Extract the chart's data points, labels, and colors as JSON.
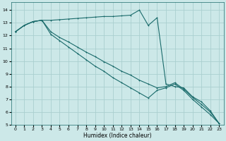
{
  "xlabel": "Humidex (Indice chaleur)",
  "background_color": "#cce8e8",
  "grid_color": "#aacfcf",
  "line_color": "#1a6b6b",
  "xlim": [
    -0.5,
    23.5
  ],
  "ylim": [
    5,
    14.6
  ],
  "yticks": [
    5,
    6,
    7,
    8,
    9,
    10,
    11,
    12,
    13,
    14
  ],
  "xticks": [
    0,
    1,
    2,
    3,
    4,
    5,
    6,
    7,
    8,
    9,
    10,
    11,
    12,
    13,
    14,
    15,
    16,
    17,
    18,
    19,
    20,
    21,
    22,
    23
  ],
  "series1_x": [
    0,
    1,
    2,
    3,
    4,
    5,
    6,
    7,
    8,
    9,
    10,
    11,
    12,
    13,
    14,
    15,
    16,
    17,
    18,
    19,
    20,
    21,
    22,
    23
  ],
  "series1_y": [
    12.3,
    12.8,
    13.1,
    13.2,
    13.2,
    13.25,
    13.3,
    13.35,
    13.4,
    13.45,
    13.5,
    13.5,
    13.55,
    13.6,
    14.0,
    12.8,
    13.4,
    8.2,
    8.0,
    7.9,
    7.2,
    6.8,
    6.1,
    5.1
  ],
  "series2_x": [
    0,
    1,
    2,
    3,
    4,
    5,
    6,
    7,
    8,
    9,
    10,
    11,
    12,
    13,
    14,
    15,
    16,
    17,
    18,
    19,
    20,
    21,
    22,
    23
  ],
  "series2_y": [
    12.3,
    12.8,
    13.1,
    13.2,
    12.1,
    11.6,
    11.1,
    10.6,
    10.1,
    9.6,
    9.2,
    8.7,
    8.3,
    7.9,
    7.5,
    7.1,
    7.7,
    7.9,
    8.2,
    7.7,
    7.0,
    6.4,
    5.8,
    5.1
  ],
  "series3_x": [
    0,
    1,
    2,
    3,
    4,
    5,
    6,
    7,
    8,
    9,
    10,
    11,
    12,
    13,
    14,
    15,
    16,
    17,
    18,
    19,
    20,
    21,
    22,
    23
  ],
  "series3_y": [
    12.3,
    12.8,
    13.1,
    13.2,
    12.3,
    11.85,
    11.5,
    11.1,
    10.7,
    10.35,
    9.95,
    9.6,
    9.2,
    8.9,
    8.5,
    8.2,
    7.9,
    8.0,
    8.3,
    7.8,
    7.15,
    6.6,
    6.0,
    5.1
  ]
}
